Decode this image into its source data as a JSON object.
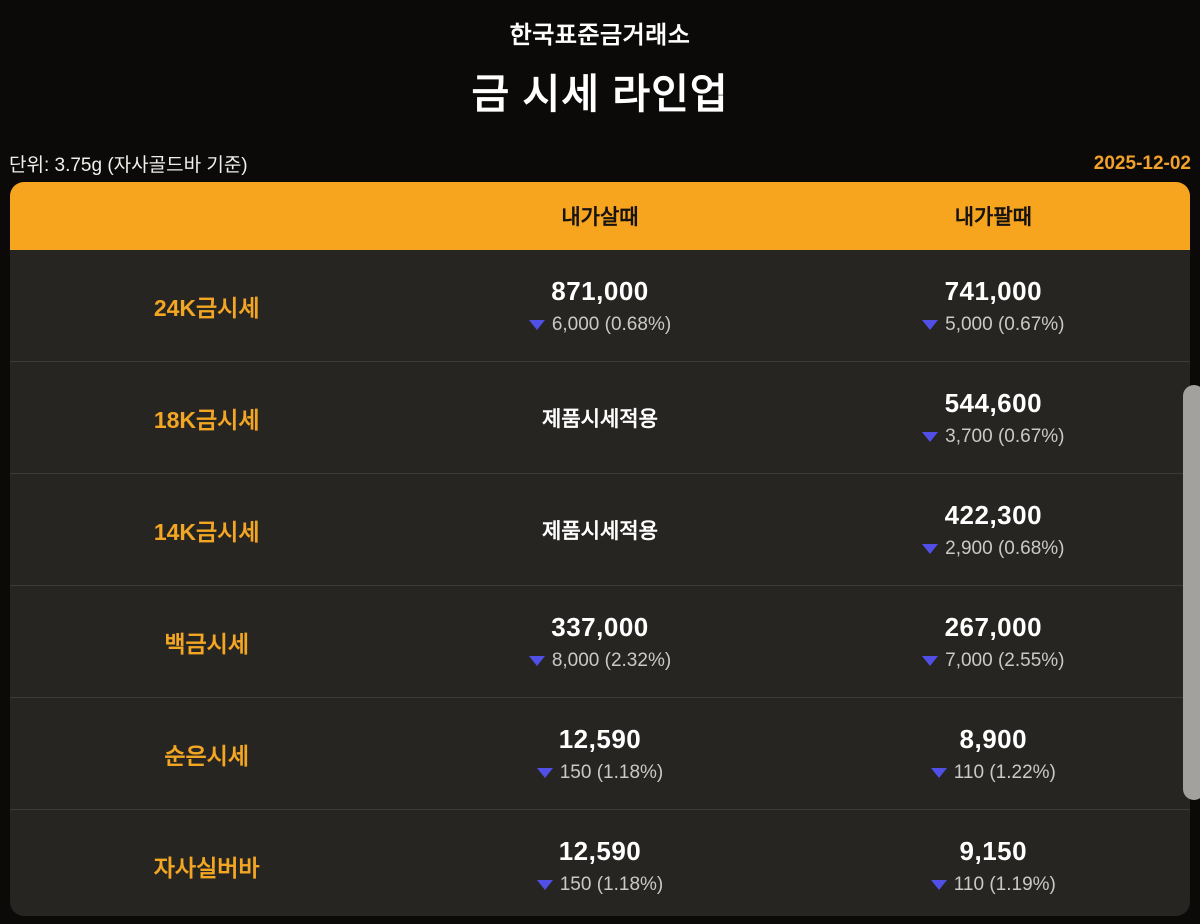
{
  "header": {
    "org": "한국표준금거래소",
    "title": "금 시세 라인업"
  },
  "meta": {
    "unit": "단위: 3.75g (자사골드바 기준)",
    "date": "2025-12-02"
  },
  "colors": {
    "accent_date": "#f2a22b",
    "header_bg": "#f7a41e",
    "row_bg": "#272522",
    "divider": "#3d3a38",
    "label": "#f3a622",
    "price": "#ffffff",
    "change_text": "#cbc9c7",
    "down_arrow": "#5050e6",
    "scroll_thumb": "#a3a19e",
    "page_bg": "#0b0a08"
  },
  "table": {
    "columns": {
      "buy": "내가살때",
      "sell": "내가팔때"
    },
    "rows": [
      {
        "label": "24K금시세",
        "buy": {
          "price": "871,000",
          "change": "6,000 (0.68%)",
          "direction": "down"
        },
        "sell": {
          "price": "741,000",
          "change": "5,000 (0.67%)",
          "direction": "down"
        }
      },
      {
        "label": "18K금시세",
        "buy": {
          "text": "제품시세적용"
        },
        "sell": {
          "price": "544,600",
          "change": "3,700 (0.67%)",
          "direction": "down"
        }
      },
      {
        "label": "14K금시세",
        "buy": {
          "text": "제품시세적용"
        },
        "sell": {
          "price": "422,300",
          "change": "2,900 (0.68%)",
          "direction": "down"
        }
      },
      {
        "label": "백금시세",
        "buy": {
          "price": "337,000",
          "change": "8,000 (2.32%)",
          "direction": "down"
        },
        "sell": {
          "price": "267,000",
          "change": "7,000 (2.55%)",
          "direction": "down"
        }
      },
      {
        "label": "순은시세",
        "buy": {
          "price": "12,590",
          "change": "150 (1.18%)",
          "direction": "down"
        },
        "sell": {
          "price": "8,900",
          "change": "110 (1.22%)",
          "direction": "down"
        }
      },
      {
        "label": "자사실버바",
        "buy": {
          "price": "12,590",
          "change": "150 (1.18%)",
          "direction": "down"
        },
        "sell": {
          "price": "9,150",
          "change": "110 (1.19%)",
          "direction": "down"
        }
      }
    ]
  }
}
